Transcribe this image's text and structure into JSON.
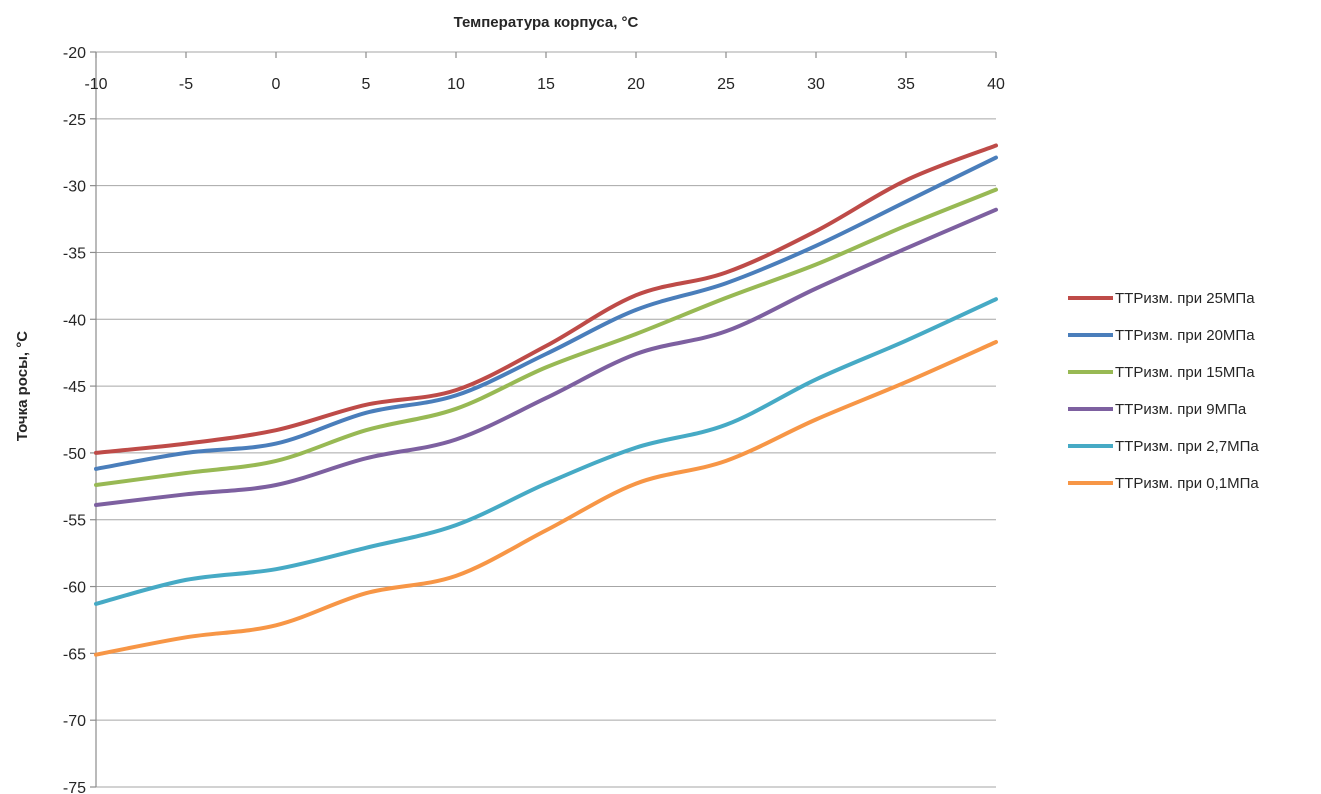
{
  "chart_data": {
    "type": "line",
    "title": "",
    "xlabel": "Температура корпуса, °C",
    "ylabel": "Точка росы, °C",
    "xlim": [
      -10,
      40
    ],
    "ylim": [
      -75,
      -20
    ],
    "x_ticks": [
      -10,
      -5,
      0,
      5,
      10,
      15,
      20,
      25,
      30,
      35,
      40
    ],
    "y_ticks": [
      -20,
      -25,
      -30,
      -35,
      -40,
      -45,
      -50,
      -55,
      -60,
      -65,
      -70,
      -75
    ],
    "x_axis_position": "top",
    "grid": "horizontal",
    "legend_position": "right",
    "x": [
      -10,
      -5,
      0,
      5,
      10,
      15,
      20,
      25,
      30,
      35,
      40
    ],
    "series": [
      {
        "name": "ТТРизм. при 25МПа",
        "color": "#be4b48",
        "values": [
          -50.0,
          -49.3,
          -48.3,
          -46.4,
          -45.3,
          -42.0,
          -38.2,
          -36.5,
          -33.4,
          -29.6,
          -27.0
        ]
      },
      {
        "name": "ТТРизм. при 20МПа",
        "color": "#4a7ebb",
        "values": [
          -51.2,
          -50.0,
          -49.3,
          -47.0,
          -45.7,
          -42.6,
          -39.3,
          -37.3,
          -34.5,
          -31.2,
          -27.9
        ]
      },
      {
        "name": "ТТРизм. при 15МПа",
        "color": "#98b954",
        "values": [
          -52.4,
          -51.5,
          -50.6,
          -48.3,
          -46.7,
          -43.6,
          -41.1,
          -38.4,
          -35.9,
          -33.0,
          -30.3
        ]
      },
      {
        "name": "ТТРизм. при 9МПа",
        "color": "#7d60a0",
        "values": [
          -53.9,
          -53.1,
          -52.4,
          -50.4,
          -49.0,
          -45.9,
          -42.6,
          -40.9,
          -37.7,
          -34.7,
          -31.8
        ]
      },
      {
        "name": "ТТРизм. при 2,7МПа",
        "color": "#46aac5",
        "values": [
          -61.3,
          -59.5,
          -58.7,
          -57.1,
          -55.4,
          -52.3,
          -49.6,
          -47.9,
          -44.5,
          -41.6,
          -38.5
        ]
      },
      {
        "name": "ТТРизм. при 0,1МПа",
        "color": "#f79646",
        "values": [
          -65.1,
          -63.8,
          -62.9,
          -60.5,
          -59.2,
          -55.8,
          -52.3,
          -50.6,
          -47.5,
          -44.7,
          -41.7
        ]
      }
    ]
  }
}
